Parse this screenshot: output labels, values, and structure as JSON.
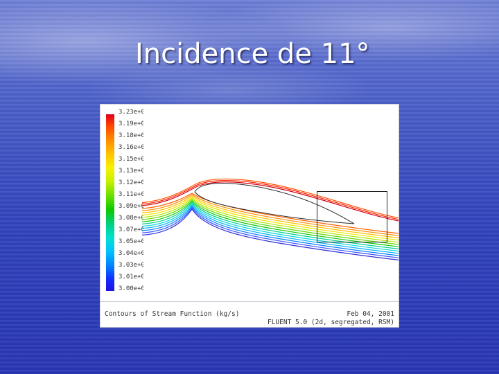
{
  "slide": {
    "title": "Incidence de 11°"
  },
  "plot": {
    "legend": [
      "3.23e+0",
      "3.19e+0",
      "3.18e+0",
      "3.16e+0",
      "3.15e+0",
      "3.13e+0",
      "3.12e+0",
      "3.11e+0",
      "3.09e+0",
      "3.08e+0",
      "3.07e+0",
      "3.05e+0",
      "3.04e+0",
      "3.03e+0",
      "3.01e+0",
      "3.00e+0"
    ],
    "caption": "Contours of Stream Function (kg/s)",
    "date": "Feb 04, 2001",
    "solver": "FLUENT 5.0 (2d, segregated, RSM)"
  },
  "colors": {
    "background": "#3345bd",
    "title": "#ffffff",
    "plot_background": "#ffffff"
  }
}
